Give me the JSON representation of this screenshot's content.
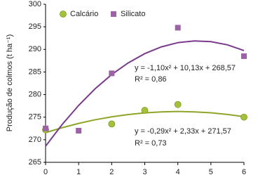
{
  "chart_data": {
    "type": "scatter",
    "y_label": "Produção de colmos (t ha⁻¹)",
    "xlim": [
      0,
      6
    ],
    "xticks": [
      0,
      1,
      2,
      3,
      4,
      5,
      6
    ],
    "ylim": [
      265,
      300
    ],
    "yticks": [
      265,
      270,
      275,
      280,
      285,
      290,
      295,
      300
    ],
    "legend": "top",
    "series": [
      {
        "name": "Calcário",
        "color": "#a3c23a",
        "marker": "circle",
        "x": [
          0,
          2,
          3,
          4,
          6
        ],
        "values": [
          272.2,
          273.5,
          276.5,
          277.8,
          275
        ],
        "fit": {
          "color": "#8ea52a",
          "x": [
            0,
            0.5,
            1,
            1.5,
            2,
            2.5,
            3,
            3.5,
            4,
            4.5,
            5,
            5.5,
            6
          ],
          "values": [
            271.57,
            272.66,
            273.61,
            274.42,
            275.07,
            275.58,
            275.95,
            276.17,
            276.25,
            276.17,
            275.97,
            275.6,
            275.11
          ]
        },
        "equation": "y = -0,29x² + 2,33x + 271,57",
        "r2": "R² = 0,73"
      },
      {
        "name": "Silicato",
        "color": "#9b63a6",
        "marker": "square",
        "x": [
          0,
          1,
          2,
          4,
          6
        ],
        "values": [
          272.5,
          272,
          284.7,
          294.8,
          288.5
        ],
        "fit": {
          "color": "#7a3a8c",
          "x": [
            0,
            0.5,
            1,
            1.5,
            2,
            2.5,
            3,
            3.5,
            4,
            4.5,
            5,
            5.5,
            6
          ],
          "values": [
            268.57,
            273.36,
            277.6,
            281.29,
            284.43,
            287.02,
            289.06,
            290.55,
            291.49,
            291.88,
            291.72,
            291.01,
            289.75
          ]
        },
        "equation": "y = -1,10x² + 10,13x + 268,57",
        "r2": "R² = 0,86"
      }
    ]
  }
}
